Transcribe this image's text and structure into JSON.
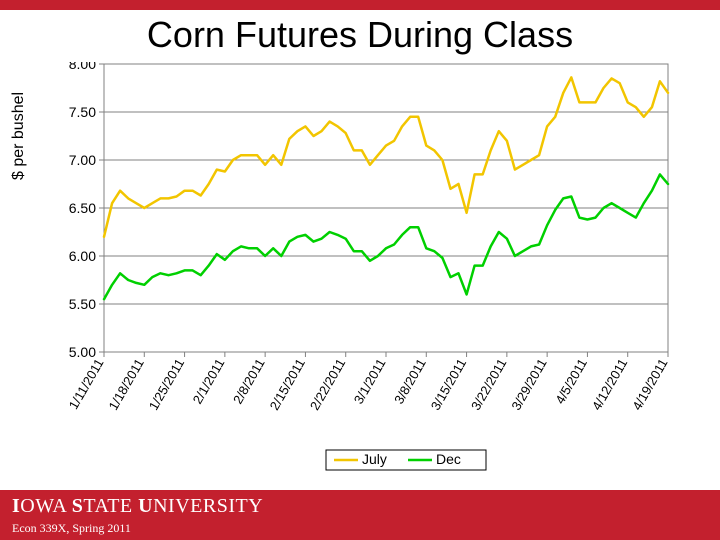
{
  "top_bar_color": "#c3202e",
  "title": "Corn Futures During Class",
  "title_fontsize": 36,
  "ylabel": "$ per bushel",
  "chart": {
    "type": "line",
    "background_color": "#ffffff",
    "grid_color": "#808080",
    "axis_color": "#808080",
    "plot_border_color": "#808080",
    "ylim": [
      5.0,
      8.0
    ],
    "ytick_step": 0.5,
    "yticks": [
      "5.00",
      "5.50",
      "6.00",
      "6.50",
      "7.00",
      "7.50",
      "8.00"
    ],
    "xticks": [
      "1/11/2011",
      "1/18/2011",
      "1/25/2011",
      "2/1/2011",
      "2/8/2011",
      "2/15/2011",
      "2/22/2011",
      "3/1/2011",
      "3/8/2011",
      "3/15/2011",
      "3/22/2011",
      "3/29/2011",
      "4/5/2011",
      "4/12/2011",
      "4/19/2011"
    ],
    "xtick_major_every": 5,
    "xtick_rotation": -60,
    "n_points": 71,
    "line_width": 2.5,
    "series": [
      {
        "name": "July",
        "color": "#f2c500",
        "data": [
          6.2,
          6.55,
          6.68,
          6.6,
          6.55,
          6.5,
          6.55,
          6.6,
          6.6,
          6.62,
          6.68,
          6.68,
          6.63,
          6.75,
          6.9,
          6.88,
          7.0,
          7.05,
          7.05,
          7.05,
          6.95,
          7.05,
          6.95,
          7.22,
          7.3,
          7.35,
          7.25,
          7.3,
          7.4,
          7.35,
          7.28,
          7.1,
          7.1,
          6.95,
          7.05,
          7.15,
          7.2,
          7.35,
          7.45,
          7.45,
          7.15,
          7.1,
          7.0,
          6.7,
          6.75,
          6.45,
          6.85,
          6.85,
          7.1,
          7.3,
          7.2,
          6.9,
          6.95,
          7.0,
          7.05,
          7.35,
          7.45,
          7.7,
          7.86,
          7.6,
          7.6,
          7.6,
          7.75,
          7.85,
          7.8,
          7.6,
          7.55,
          7.45,
          7.55,
          7.82,
          7.7
        ]
      },
      {
        "name": "Dec",
        "color": "#00d000",
        "data": [
          5.55,
          5.7,
          5.82,
          5.75,
          5.72,
          5.7,
          5.78,
          5.82,
          5.8,
          5.82,
          5.85,
          5.85,
          5.8,
          5.9,
          6.02,
          5.96,
          6.05,
          6.1,
          6.08,
          6.08,
          6.0,
          6.08,
          6.0,
          6.15,
          6.2,
          6.22,
          6.15,
          6.18,
          6.25,
          6.22,
          6.18,
          6.05,
          6.05,
          5.95,
          6.0,
          6.08,
          6.12,
          6.22,
          6.3,
          6.3,
          6.08,
          6.05,
          5.98,
          5.78,
          5.82,
          5.6,
          5.9,
          5.9,
          6.1,
          6.25,
          6.18,
          6.0,
          6.05,
          6.1,
          6.12,
          6.32,
          6.48,
          6.6,
          6.62,
          6.4,
          6.38,
          6.4,
          6.5,
          6.55,
          6.5,
          6.45,
          6.4,
          6.55,
          6.68,
          6.85,
          6.75
        ]
      }
    ],
    "legend": {
      "position": "bottom-center",
      "border_color": "#000000",
      "items": [
        "July",
        "Dec"
      ]
    }
  },
  "footer": {
    "bg_color": "#c3202e",
    "logo_parts": [
      "I",
      "OWA ",
      "S",
      "TATE ",
      "U",
      "NIVERSITY"
    ],
    "logo_html": "IOWA STATE UNIVERSITY",
    "course": "Econ 339X, Spring 2011"
  }
}
